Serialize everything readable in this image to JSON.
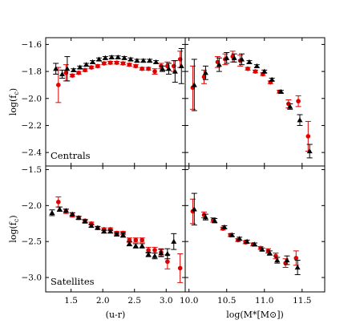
{
  "chart_data": [
    {
      "type": "scatter",
      "panel": "centrals-colour",
      "annotation": "Centrals",
      "ylabel": "log(f_c)",
      "xlabel": "",
      "xlim": [
        1.1,
        3.3
      ],
      "ylim": [
        -2.5,
        -1.55
      ],
      "xticks": [
        1.5,
        2.0,
        2.5,
        3.0
      ],
      "yticks": [
        -1.6,
        -1.8,
        -2.0,
        -2.2,
        -2.4
      ],
      "series": [
        {
          "color": "#e00000",
          "marker": "circle",
          "points": [
            {
              "x": 1.3,
              "y": -1.9,
              "err": 0.13
            },
            {
              "x": 1.42,
              "y": -1.81,
              "err": 0.06
            },
            {
              "x": 1.52,
              "y": -1.83,
              "err": 0.01
            },
            {
              "x": 1.62,
              "y": -1.81,
              "err": 0.01
            },
            {
              "x": 1.72,
              "y": -1.79,
              "err": 0.01
            },
            {
              "x": 1.82,
              "y": -1.77,
              "err": 0.01
            },
            {
              "x": 1.92,
              "y": -1.76,
              "err": 0.01
            },
            {
              "x": 2.02,
              "y": -1.74,
              "err": 0.01
            },
            {
              "x": 2.12,
              "y": -1.735,
              "err": 0.01
            },
            {
              "x": 2.22,
              "y": -1.735,
              "err": 0.01
            },
            {
              "x": 2.32,
              "y": -1.74,
              "err": 0.01
            },
            {
              "x": 2.42,
              "y": -1.75,
              "err": 0.01
            },
            {
              "x": 2.52,
              "y": -1.76,
              "err": 0.01
            },
            {
              "x": 2.62,
              "y": -1.78,
              "err": 0.01
            },
            {
              "x": 2.72,
              "y": -1.78,
              "err": 0.01
            },
            {
              "x": 2.82,
              "y": -1.8,
              "err": 0.02
            },
            {
              "x": 2.92,
              "y": -1.76,
              "err": 0.02
            },
            {
              "x": 3.02,
              "y": -1.76,
              "err": 0.03
            },
            {
              "x": 3.12,
              "y": -1.76,
              "err": 0.04
            },
            {
              "x": 3.22,
              "y": -1.71,
              "err": 0.06
            }
          ]
        },
        {
          "color": "#000000",
          "marker": "triangle",
          "points": [
            {
              "x": 1.26,
              "y": -1.78,
              "err": 0.04
            },
            {
              "x": 1.36,
              "y": -1.82,
              "err": 0.03
            },
            {
              "x": 1.44,
              "y": -1.78,
              "err": 0.09
            },
            {
              "x": 1.54,
              "y": -1.79,
              "err": 0.01
            },
            {
              "x": 1.64,
              "y": -1.77,
              "err": 0.01
            },
            {
              "x": 1.74,
              "y": -1.75,
              "err": 0.01
            },
            {
              "x": 1.84,
              "y": -1.73,
              "err": 0.01
            },
            {
              "x": 1.94,
              "y": -1.71,
              "err": 0.01
            },
            {
              "x": 2.04,
              "y": -1.7,
              "err": 0.01
            },
            {
              "x": 2.14,
              "y": -1.695,
              "err": 0.01
            },
            {
              "x": 2.24,
              "y": -1.695,
              "err": 0.01
            },
            {
              "x": 2.34,
              "y": -1.7,
              "err": 0.01
            },
            {
              "x": 2.44,
              "y": -1.71,
              "err": 0.01
            },
            {
              "x": 2.54,
              "y": -1.72,
              "err": 0.01
            },
            {
              "x": 2.64,
              "y": -1.72,
              "err": 0.01
            },
            {
              "x": 2.74,
              "y": -1.72,
              "err": 0.01
            },
            {
              "x": 2.84,
              "y": -1.73,
              "err": 0.01
            },
            {
              "x": 2.94,
              "y": -1.78,
              "err": 0.02
            },
            {
              "x": 3.04,
              "y": -1.78,
              "err": 0.04
            },
            {
              "x": 3.14,
              "y": -1.8,
              "err": 0.08
            },
            {
              "x": 3.24,
              "y": -1.76,
              "err": 0.13
            }
          ]
        }
      ]
    },
    {
      "type": "scatter",
      "panel": "centrals-mass",
      "xlim": [
        9.95,
        11.8
      ],
      "ylim": [
        -2.5,
        -1.55
      ],
      "xticks": [
        10.0,
        10.5,
        11.0,
        11.5
      ],
      "series": [
        {
          "color": "#e00000",
          "marker": "circle",
          "points": [
            {
              "x": 10.05,
              "y": -1.92,
              "err": 0.16
            },
            {
              "x": 10.2,
              "y": -1.84,
              "err": 0.05
            },
            {
              "x": 10.38,
              "y": -1.73,
              "err": 0.04
            },
            {
              "x": 10.48,
              "y": -1.71,
              "err": 0.04
            },
            {
              "x": 10.58,
              "y": -1.69,
              "err": 0.04
            },
            {
              "x": 10.68,
              "y": -1.72,
              "err": 0.04
            },
            {
              "x": 10.78,
              "y": -1.78,
              "err": 0.01
            },
            {
              "x": 10.88,
              "y": -1.8,
              "err": 0.01
            },
            {
              "x": 10.98,
              "y": -1.82,
              "err": 0.01
            },
            {
              "x": 11.08,
              "y": -1.88,
              "err": 0.01
            },
            {
              "x": 11.2,
              "y": -1.95,
              "err": 0.01
            },
            {
              "x": 11.32,
              "y": -2.04,
              "err": 0.03
            },
            {
              "x": 11.45,
              "y": -2.02,
              "err": 0.04
            },
            {
              "x": 11.58,
              "y": -2.28,
              "err": 0.11
            }
          ]
        },
        {
          "color": "#000000",
          "marker": "triangle",
          "points": [
            {
              "x": 10.07,
              "y": -1.9,
              "err": 0.19
            },
            {
              "x": 10.22,
              "y": -1.81,
              "err": 0.05
            },
            {
              "x": 10.4,
              "y": -1.75,
              "err": 0.05
            },
            {
              "x": 10.5,
              "y": -1.7,
              "err": 0.04
            },
            {
              "x": 10.6,
              "y": -1.7,
              "err": 0.03
            },
            {
              "x": 10.7,
              "y": -1.71,
              "err": 0.04
            },
            {
              "x": 10.8,
              "y": -1.73,
              "err": 0.01
            },
            {
              "x": 10.9,
              "y": -1.76,
              "err": 0.01
            },
            {
              "x": 11.0,
              "y": -1.8,
              "err": 0.01
            },
            {
              "x": 11.1,
              "y": -1.86,
              "err": 0.01
            },
            {
              "x": 11.22,
              "y": -1.95,
              "err": 0.01
            },
            {
              "x": 11.34,
              "y": -2.06,
              "err": 0.02
            },
            {
              "x": 11.47,
              "y": -2.16,
              "err": 0.04
            },
            {
              "x": 11.6,
              "y": -2.39,
              "err": 0.05
            }
          ]
        }
      ]
    },
    {
      "type": "scatter",
      "panel": "satellites-colour",
      "annotation": "Satellites",
      "ylabel": "log(f_c)",
      "xlabel": "(u-r)",
      "xlim": [
        1.1,
        3.3
      ],
      "ylim": [
        -3.2,
        -1.45
      ],
      "xticks": [
        1.5,
        2.0,
        2.5,
        3.0
      ],
      "yticks": [
        -1.5,
        -2.0,
        -2.5,
        -3.0
      ],
      "series": [
        {
          "color": "#e00000",
          "marker": "circle",
          "points": [
            {
              "x": 1.3,
              "y": -1.95,
              "err": 0.07
            },
            {
              "x": 1.42,
              "y": -2.08,
              "err": 0.03
            },
            {
              "x": 1.52,
              "y": -2.13,
              "err": 0.03
            },
            {
              "x": 1.62,
              "y": -2.17,
              "err": 0.02
            },
            {
              "x": 1.72,
              "y": -2.21,
              "err": 0.02
            },
            {
              "x": 1.82,
              "y": -2.25,
              "err": 0.02
            },
            {
              "x": 1.92,
              "y": -2.31,
              "err": 0.02
            },
            {
              "x": 2.02,
              "y": -2.33,
              "err": 0.02
            },
            {
              "x": 2.12,
              "y": -2.33,
              "err": 0.02
            },
            {
              "x": 2.22,
              "y": -2.38,
              "err": 0.02
            },
            {
              "x": 2.32,
              "y": -2.38,
              "err": 0.02
            },
            {
              "x": 2.42,
              "y": -2.48,
              "err": 0.03
            },
            {
              "x": 2.52,
              "y": -2.48,
              "err": 0.03
            },
            {
              "x": 2.62,
              "y": -2.48,
              "err": 0.03
            },
            {
              "x": 2.72,
              "y": -2.62,
              "err": 0.04
            },
            {
              "x": 2.82,
              "y": -2.62,
              "err": 0.04
            },
            {
              "x": 2.92,
              "y": -2.65,
              "err": 0.05
            },
            {
              "x": 3.02,
              "y": -2.78,
              "err": 0.1
            },
            {
              "x": 3.22,
              "y": -2.87,
              "err": 0.2
            }
          ]
        },
        {
          "color": "#000000",
          "marker": "triangle",
          "points": [
            {
              "x": 1.2,
              "y": -2.1,
              "err": 0.04
            },
            {
              "x": 1.32,
              "y": -2.05,
              "err": 0.03
            },
            {
              "x": 1.42,
              "y": -2.07,
              "err": 0.02
            },
            {
              "x": 1.52,
              "y": -2.12,
              "err": 0.02
            },
            {
              "x": 1.62,
              "y": -2.17,
              "err": 0.02
            },
            {
              "x": 1.72,
              "y": -2.22,
              "err": 0.02
            },
            {
              "x": 1.82,
              "y": -2.28,
              "err": 0.02
            },
            {
              "x": 1.92,
              "y": -2.31,
              "err": 0.02
            },
            {
              "x": 2.02,
              "y": -2.36,
              "err": 0.02
            },
            {
              "x": 2.12,
              "y": -2.36,
              "err": 0.02
            },
            {
              "x": 2.22,
              "y": -2.4,
              "err": 0.02
            },
            {
              "x": 2.32,
              "y": -2.41,
              "err": 0.03
            },
            {
              "x": 2.42,
              "y": -2.53,
              "err": 0.03
            },
            {
              "x": 2.52,
              "y": -2.56,
              "err": 0.03
            },
            {
              "x": 2.62,
              "y": -2.56,
              "err": 0.03
            },
            {
              "x": 2.72,
              "y": -2.68,
              "err": 0.03
            },
            {
              "x": 2.82,
              "y": -2.7,
              "err": 0.04
            },
            {
              "x": 2.92,
              "y": -2.66,
              "err": 0.05
            },
            {
              "x": 3.02,
              "y": -2.67,
              "err": 0.07
            },
            {
              "x": 3.12,
              "y": -2.5,
              "err": 0.11
            }
          ]
        }
      ]
    },
    {
      "type": "scatter",
      "panel": "satellites-mass",
      "xlabel": "log(M*[M⊙])",
      "xlim": [
        9.95,
        11.8
      ],
      "ylim": [
        -3.2,
        -1.45
      ],
      "xticks": [
        10.0,
        10.5,
        11.0,
        11.5
      ],
      "series": [
        {
          "color": "#e00000",
          "marker": "circle",
          "points": [
            {
              "x": 10.05,
              "y": -2.08,
              "err": 0.17
            },
            {
              "x": 10.2,
              "y": -2.13,
              "err": 0.04
            },
            {
              "x": 10.32,
              "y": -2.2,
              "err": 0.03
            },
            {
              "x": 10.45,
              "y": -2.32,
              "err": 0.02
            },
            {
              "x": 10.55,
              "y": -2.41,
              "err": 0.02
            },
            {
              "x": 10.65,
              "y": -2.48,
              "err": 0.02
            },
            {
              "x": 10.75,
              "y": -2.51,
              "err": 0.02
            },
            {
              "x": 10.85,
              "y": -2.54,
              "err": 0.02
            },
            {
              "x": 10.95,
              "y": -2.59,
              "err": 0.02
            },
            {
              "x": 11.05,
              "y": -2.63,
              "err": 0.03
            },
            {
              "x": 11.15,
              "y": -2.7,
              "err": 0.04
            },
            {
              "x": 11.28,
              "y": -2.8,
              "err": 0.06
            },
            {
              "x": 11.42,
              "y": -2.73,
              "err": 0.1
            }
          ]
        },
        {
          "color": "#000000",
          "marker": "triangle",
          "points": [
            {
              "x": 10.07,
              "y": -2.05,
              "err": 0.22
            },
            {
              "x": 10.22,
              "y": -2.16,
              "err": 0.04
            },
            {
              "x": 10.34,
              "y": -2.21,
              "err": 0.03
            },
            {
              "x": 10.47,
              "y": -2.3,
              "err": 0.02
            },
            {
              "x": 10.57,
              "y": -2.41,
              "err": 0.02
            },
            {
              "x": 10.67,
              "y": -2.46,
              "err": 0.02
            },
            {
              "x": 10.77,
              "y": -2.5,
              "err": 0.02
            },
            {
              "x": 10.87,
              "y": -2.54,
              "err": 0.02
            },
            {
              "x": 10.97,
              "y": -2.61,
              "err": 0.02
            },
            {
              "x": 11.07,
              "y": -2.66,
              "err": 0.03
            },
            {
              "x": 11.17,
              "y": -2.76,
              "err": 0.04
            },
            {
              "x": 11.3,
              "y": -2.76,
              "err": 0.06
            },
            {
              "x": 11.44,
              "y": -2.86,
              "err": 0.1
            }
          ]
        }
      ]
    }
  ]
}
